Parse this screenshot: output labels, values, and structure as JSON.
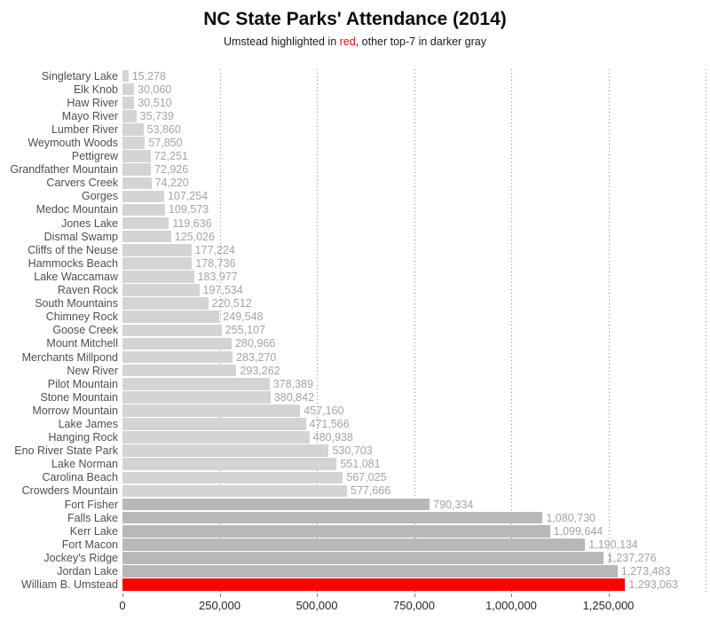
{
  "chart_data": {
    "type": "bar",
    "orientation": "horizontal",
    "title": "NC State Parks' Attendance (2014)",
    "subtitle": {
      "pre": "Umstead highlighted in ",
      "highlight": "red",
      "post": ", other top-7 in darker gray"
    },
    "xlabel": "",
    "ylabel": "",
    "xlim": [
      0,
      1500000
    ],
    "grid": "vertical-dotted",
    "x_ticks": [
      {
        "value": 0,
        "label": "0"
      },
      {
        "value": 250000,
        "label": "250,000"
      },
      {
        "value": 500000,
        "label": "500,000"
      },
      {
        "value": 750000,
        "label": "750,000"
      },
      {
        "value": 1000000,
        "label": "1,000,000"
      },
      {
        "value": 1250000,
        "label": "1,250,000"
      }
    ],
    "gridline_values": [
      250000,
      500000,
      750000,
      1000000,
      1250000,
      1500000
    ],
    "colors": {
      "light_bar": "#d4d4d4",
      "dark_bar": "#b8b8b8",
      "red_bar": "#ff0000",
      "subtitle_highlight": "#ff0000",
      "value_label": "#a3a3a3",
      "category_label": "#4f4f4f"
    },
    "bars": [
      {
        "label": "Singletary Lake",
        "value": 15278,
        "value_label": "15,278",
        "group": "light_bar"
      },
      {
        "label": "Elk Knob",
        "value": 30060,
        "value_label": "30,060",
        "group": "light_bar"
      },
      {
        "label": "Haw River",
        "value": 30510,
        "value_label": "30,510",
        "group": "light_bar"
      },
      {
        "label": "Mayo River",
        "value": 35739,
        "value_label": "35,739",
        "group": "light_bar"
      },
      {
        "label": "Lumber River",
        "value": 53860,
        "value_label": "53,860",
        "group": "light_bar"
      },
      {
        "label": "Weymouth Woods",
        "value": 57850,
        "value_label": "57,850",
        "group": "light_bar"
      },
      {
        "label": "Pettigrew",
        "value": 72251,
        "value_label": "72,251",
        "group": "light_bar"
      },
      {
        "label": "Grandfather Mountain",
        "value": 72926,
        "value_label": "72,926",
        "group": "light_bar"
      },
      {
        "label": "Carvers Creek",
        "value": 74220,
        "value_label": "74,220",
        "group": "light_bar"
      },
      {
        "label": "Gorges",
        "value": 107254,
        "value_label": "107,254",
        "group": "light_bar"
      },
      {
        "label": "Medoc Mountain",
        "value": 109573,
        "value_label": "109,573",
        "group": "light_bar"
      },
      {
        "label": "Jones Lake",
        "value": 119636,
        "value_label": "119,636",
        "group": "light_bar"
      },
      {
        "label": "Dismal Swamp",
        "value": 125026,
        "value_label": "125,026",
        "group": "light_bar"
      },
      {
        "label": "Cliffs of the Neuse",
        "value": 177224,
        "value_label": "177,224",
        "group": "light_bar"
      },
      {
        "label": "Hammocks Beach",
        "value": 178736,
        "value_label": "178,736",
        "group": "light_bar"
      },
      {
        "label": "Lake Waccamaw",
        "value": 183977,
        "value_label": "183,977",
        "group": "light_bar"
      },
      {
        "label": "Raven Rock",
        "value": 197534,
        "value_label": "197,534",
        "group": "light_bar"
      },
      {
        "label": "South Mountains",
        "value": 220512,
        "value_label": "220,512",
        "group": "light_bar"
      },
      {
        "label": "Chimney Rock",
        "value": 249548,
        "value_label": "249,548",
        "group": "light_bar"
      },
      {
        "label": "Goose Creek",
        "value": 255107,
        "value_label": "255,107",
        "group": "light_bar"
      },
      {
        "label": "Mount Mitchell",
        "value": 280966,
        "value_label": "280,966",
        "group": "light_bar"
      },
      {
        "label": "Merchants Millpond",
        "value": 283270,
        "value_label": "283,270",
        "group": "light_bar"
      },
      {
        "label": "New River",
        "value": 293262,
        "value_label": "293,262",
        "group": "light_bar"
      },
      {
        "label": "Pilot Mountain",
        "value": 378389,
        "value_label": "378,389",
        "group": "light_bar"
      },
      {
        "label": "Stone Mountain",
        "value": 380842,
        "value_label": "380,842",
        "group": "light_bar"
      },
      {
        "label": "Morrow Mountain",
        "value": 457160,
        "value_label": "457,160",
        "group": "light_bar"
      },
      {
        "label": "Lake James",
        "value": 471566,
        "value_label": "471,566",
        "group": "light_bar"
      },
      {
        "label": "Hanging Rock",
        "value": 480938,
        "value_label": "480,938",
        "group": "light_bar"
      },
      {
        "label": "Eno River State Park",
        "value": 530703,
        "value_label": "530,703",
        "group": "light_bar"
      },
      {
        "label": "Lake Norman",
        "value": 551081,
        "value_label": "551,081",
        "group": "light_bar"
      },
      {
        "label": "Carolina Beach",
        "value": 567025,
        "value_label": "567,025",
        "group": "light_bar"
      },
      {
        "label": "Crowders Mountain",
        "value": 577666,
        "value_label": "577,666",
        "group": "light_bar"
      },
      {
        "label": "Fort Fisher",
        "value": 790334,
        "value_label": "790,334",
        "group": "dark_bar"
      },
      {
        "label": "Falls Lake",
        "value": 1080730,
        "value_label": "1,080,730",
        "group": "dark_bar"
      },
      {
        "label": "Kerr Lake",
        "value": 1099644,
        "value_label": "1,099,644",
        "group": "dark_bar"
      },
      {
        "label": "Fort Macon",
        "value": 1190134,
        "value_label": "1,190,134",
        "group": "dark_bar"
      },
      {
        "label": "Jockey's Ridge",
        "value": 1237276,
        "value_label": "1,237,276",
        "group": "dark_bar"
      },
      {
        "label": "Jordan Lake",
        "value": 1273483,
        "value_label": "1,273,483",
        "group": "dark_bar"
      },
      {
        "label": "William B. Umstead",
        "value": 1293063,
        "value_label": "1,293,063",
        "group": "red_bar"
      }
    ]
  }
}
